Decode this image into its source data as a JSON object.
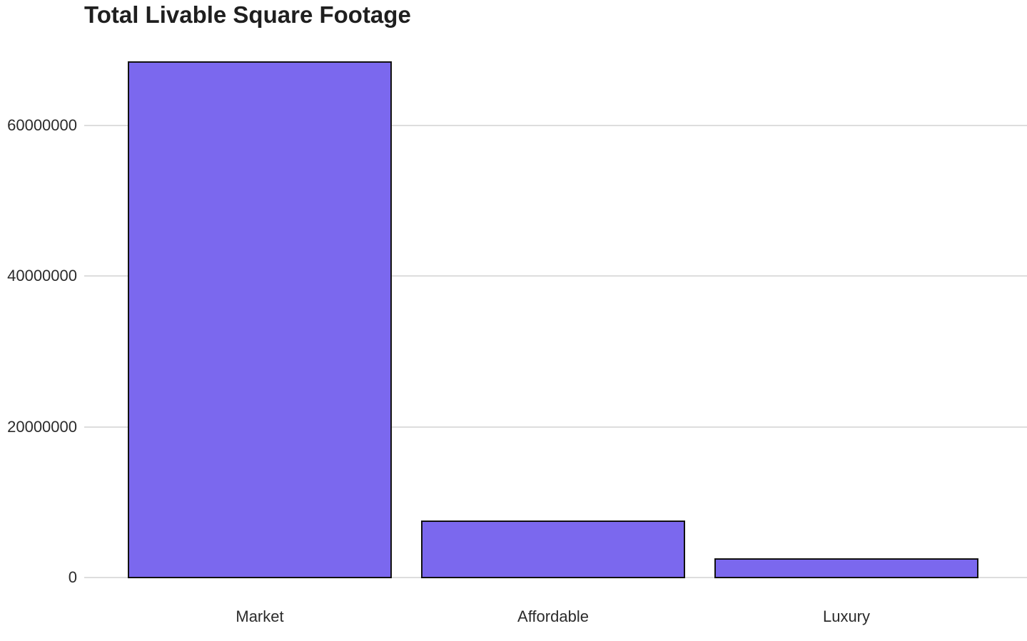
{
  "chart_data": {
    "type": "bar",
    "title": "Total Livable Square Footage",
    "categories": [
      "Market",
      "Affordable",
      "Luxury"
    ],
    "values": [
      68500000,
      7600000,
      2600000
    ],
    "yticks": [
      0,
      20000000,
      40000000,
      60000000
    ],
    "ytick_labels": [
      "0",
      "20000000",
      "40000000",
      "60000000"
    ],
    "ylim": [
      0,
      68500000
    ],
    "xlabel": "",
    "ylabel": "",
    "grid": true,
    "legend": false,
    "colors": {
      "bar_fill": "#7b68ee",
      "bar_stroke": "#111111",
      "gridline": "#dddddd",
      "tick_text": "#2b2b2b",
      "title_text": "#1f1f1f",
      "background": "#ffffff"
    }
  }
}
